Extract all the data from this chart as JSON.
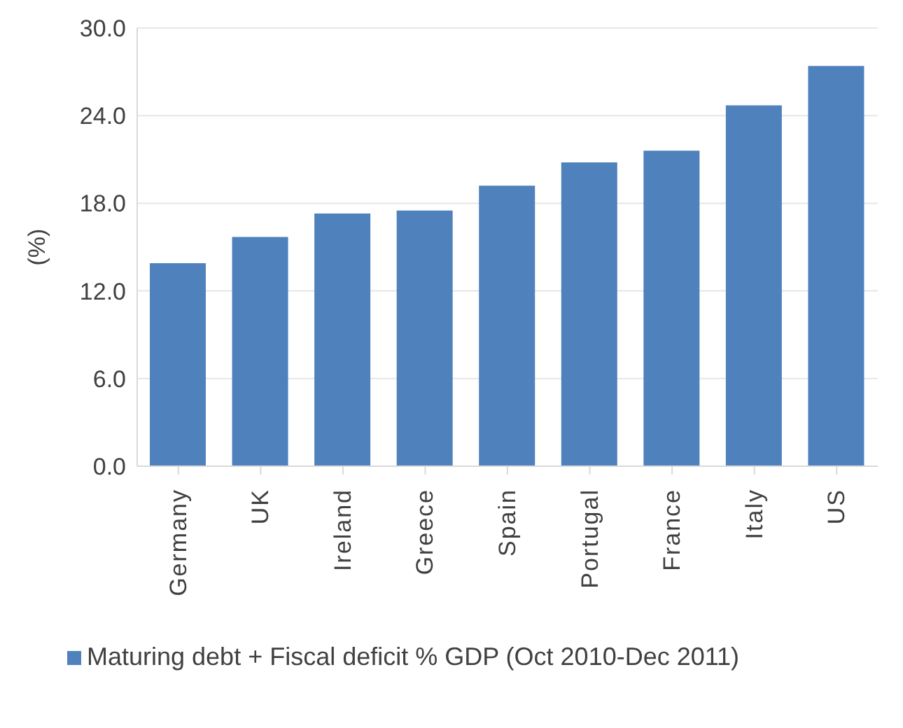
{
  "chart_data": {
    "type": "bar",
    "ylabel": "(%)",
    "categories": [
      "Germany",
      "UK",
      "Ireland",
      "Greece",
      "Spain",
      "Portugal",
      "France",
      "Italy",
      "US"
    ],
    "series": [
      {
        "name": "Maturing debt + Fiscal deficit % GDP (Oct 2010-Dec 2011)",
        "color": "#4f81bd",
        "values": [
          13.9,
          15.7,
          17.3,
          17.5,
          19.2,
          20.8,
          21.6,
          24.7,
          27.4
        ]
      }
    ],
    "ylim": [
      0,
      30
    ],
    "yticks": [
      {
        "value": 0,
        "label": "0.0"
      },
      {
        "value": 6,
        "label": "6.0"
      },
      {
        "value": 12,
        "label": "12.0"
      },
      {
        "value": 18,
        "label": "18.0"
      },
      {
        "value": 24,
        "label": "24.0"
      },
      {
        "value": 30,
        "label": "30.0"
      }
    ],
    "grid": "y",
    "legend": "bottom"
  }
}
